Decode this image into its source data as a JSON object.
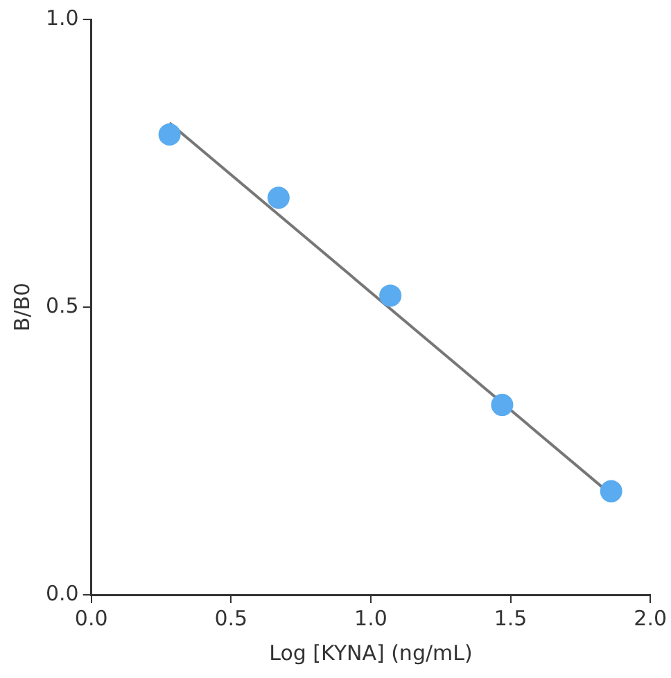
{
  "chart_data": {
    "type": "scatter",
    "xlabel": "Log [KYNA] (ng/mL)",
    "ylabel": "B/B0",
    "xlim": [
      0,
      2
    ],
    "xticks": [
      {
        "value": 0,
        "label": "0.0"
      },
      {
        "value": 0.5,
        "label": "0.5"
      },
      {
        "value": 1,
        "label": "1.0"
      },
      {
        "value": 1.5,
        "label": "1.5"
      },
      {
        "value": 2,
        "label": "2.0"
      }
    ],
    "ylim": [
      0,
      1
    ],
    "yticks": [
      {
        "value": 0,
        "label": "0.0"
      },
      {
        "value": 0.5,
        "label": "0.5"
      },
      {
        "value": 1,
        "label": "1.0"
      }
    ],
    "grid": false,
    "legend": false,
    "marker": "circle",
    "series": [
      {
        "color": "#5aabf0",
        "x": [
          0.28,
          0.67,
          1.07,
          1.47,
          1.86
        ],
        "values": [
          0.8,
          0.69,
          0.52,
          0.33,
          0.18
        ]
      },
      {
        "type": "line",
        "marker": "none",
        "color": "#777777",
        "x": [
          0.28,
          1.87
        ],
        "values": [
          0.82,
          0.17
        ]
      }
    ]
  }
}
